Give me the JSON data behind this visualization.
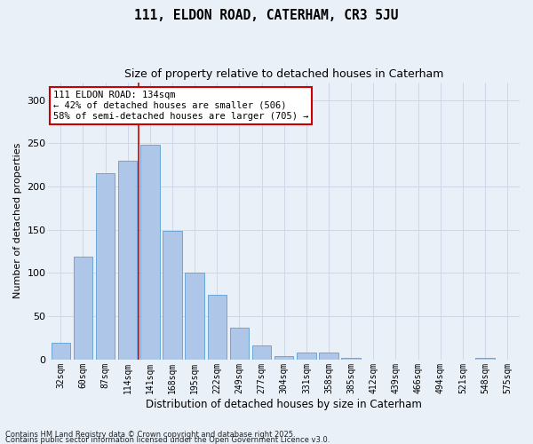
{
  "title1": "111, ELDON ROAD, CATERHAM, CR3 5JU",
  "title2": "Size of property relative to detached houses in Caterham",
  "xlabel": "Distribution of detached houses by size in Caterham",
  "ylabel": "Number of detached properties",
  "categories": [
    "32sqm",
    "60sqm",
    "87sqm",
    "114sqm",
    "141sqm",
    "168sqm",
    "195sqm",
    "222sqm",
    "249sqm",
    "277sqm",
    "304sqm",
    "331sqm",
    "358sqm",
    "385sqm",
    "412sqm",
    "439sqm",
    "466sqm",
    "494sqm",
    "521sqm",
    "548sqm",
    "575sqm"
  ],
  "values": [
    19,
    119,
    215,
    230,
    248,
    148,
    100,
    75,
    36,
    16,
    4,
    8,
    8,
    2,
    0,
    0,
    0,
    0,
    0,
    2,
    0
  ],
  "bar_color": "#aec6e8",
  "bar_edge_color": "#5a9fd4",
  "grid_color": "#d0d8e8",
  "background_color": "#eaf0f8",
  "vline_color": "#cc0000",
  "vline_x_index": 3.5,
  "annotation_text": "111 ELDON ROAD: 134sqm\n← 42% of detached houses are smaller (506)\n58% of semi-detached houses are larger (705) →",
  "annotation_box_color": "#ffffff",
  "annotation_box_edge": "#cc0000",
  "footer1": "Contains HM Land Registry data © Crown copyright and database right 2025.",
  "footer2": "Contains public sector information licensed under the Open Government Licence v3.0.",
  "ylim": [
    0,
    320
  ],
  "yticks": [
    0,
    50,
    100,
    150,
    200,
    250,
    300
  ]
}
